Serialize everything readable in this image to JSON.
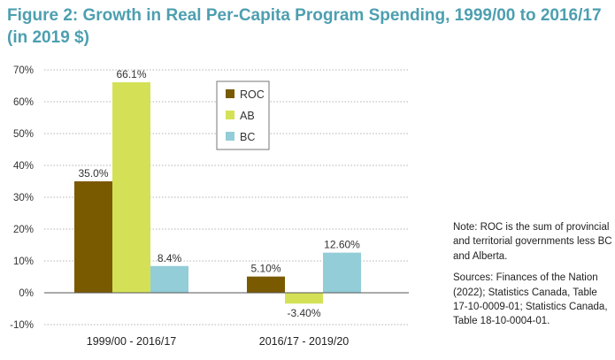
{
  "figure": {
    "title_line1": "Figure 2: Growth in Real Per-Capita Program Spending, 1999/00 to 2016/17",
    "title_line2": "(in 2019 $)"
  },
  "chart_data": {
    "type": "bar",
    "categories": [
      "1999/00 - 2016/17",
      "2016/17 - 2019/20"
    ],
    "series": [
      {
        "name": "ROC",
        "color": "#7a5a00",
        "values": [
          35.0,
          5.1
        ],
        "labels": [
          "35.0%",
          "5.10%"
        ]
      },
      {
        "name": "AB",
        "color": "#d4e157",
        "values": [
          66.1,
          -3.4
        ],
        "labels": [
          "66.1%",
          "-3.40%"
        ]
      },
      {
        "name": "BC",
        "color": "#92cdd8",
        "values": [
          8.4,
          12.6
        ],
        "labels": [
          "8.4%",
          "12.60%"
        ]
      }
    ],
    "ylim": [
      -10,
      70
    ],
    "yticks": [
      -10,
      0,
      10,
      20,
      30,
      40,
      50,
      60,
      70
    ],
    "ytick_labels": [
      "-10%",
      "0%",
      "10%",
      "20%",
      "30%",
      "40%",
      "50%",
      "60%",
      "70%"
    ],
    "grid": "horizontal dotted",
    "legend_position": "top-center"
  },
  "notes": {
    "note_text": "Note: ROC is the sum of provincial and territorial governments less BC and Alberta.",
    "sources_text": "Sources: Finances of the Nation (2022); Statistics Canada, Table 17-10-0009-01; Statistics Canada, Table 18-10-0004-01."
  }
}
